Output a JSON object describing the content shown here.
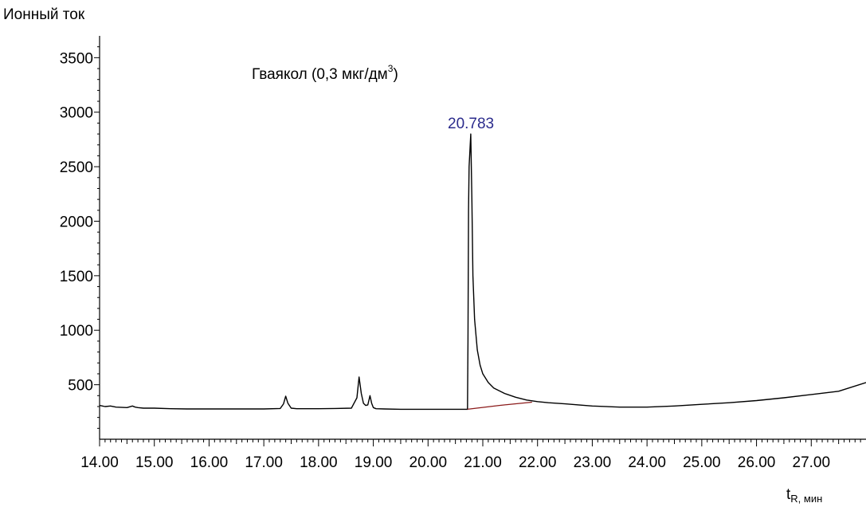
{
  "chart_data": {
    "type": "line",
    "ylabel": "Ионный ток",
    "xlabel_main": "t",
    "xlabel_sub": "R, мин",
    "annotation": {
      "text_main": "Гваякол (0,3 мкг/дм",
      "text_sup": "3",
      "text_close": ")"
    },
    "peak_label": {
      "text": "20.783",
      "x": 20.783,
      "y": 2800
    },
    "xlim": [
      14.0,
      28.0
    ],
    "ylim": [
      0,
      3700
    ],
    "x_ticks": [
      "14.00",
      "15.00",
      "16.00",
      "17.00",
      "18.00",
      "19.00",
      "20.00",
      "21.00",
      "22.00",
      "23.00",
      "24.00",
      "25.00",
      "26.00",
      "27.00"
    ],
    "y_ticks": [
      "500",
      "1000",
      "1500",
      "2000",
      "2500",
      "3000",
      "3500"
    ],
    "series": [
      {
        "color": "#000000",
        "x": [
          14.0,
          14.1,
          14.2,
          14.3,
          14.5,
          14.6,
          14.65,
          14.7,
          14.8,
          15.0,
          15.3,
          15.6,
          16.0,
          16.5,
          17.0,
          17.3,
          17.36,
          17.4,
          17.44,
          17.5,
          17.6,
          18.0,
          18.3,
          18.6,
          18.7,
          18.74,
          18.78,
          18.82,
          18.86,
          18.9,
          18.94,
          18.97,
          19.0,
          19.05,
          19.2,
          19.5,
          20.0,
          20.4,
          20.72,
          20.73,
          20.74,
          20.75,
          20.78,
          20.8,
          20.82,
          20.85,
          20.9,
          20.95,
          21.0,
          21.1,
          21.2,
          21.4,
          21.6,
          21.8,
          22.0,
          22.2,
          22.5,
          23.0,
          23.5,
          24.0,
          24.5,
          25.0,
          25.5,
          26.0,
          26.5,
          27.0,
          27.5,
          28.0
        ],
        "y": [
          310,
          300,
          305,
          295,
          290,
          305,
          295,
          290,
          285,
          285,
          280,
          278,
          278,
          278,
          278,
          282,
          325,
          395,
          330,
          285,
          280,
          280,
          282,
          285,
          380,
          570,
          420,
          330,
          310,
          315,
          400,
          330,
          290,
          280,
          278,
          275,
          275,
          275,
          275,
          900,
          2100,
          2500,
          2800,
          2200,
          1500,
          1100,
          820,
          680,
          600,
          520,
          470,
          420,
          385,
          360,
          345,
          335,
          325,
          305,
          295,
          295,
          305,
          320,
          335,
          355,
          380,
          410,
          440,
          520
        ]
      },
      {
        "color": "#8b1a1a",
        "x": [
          20.72,
          21.3,
          21.9
        ],
        "y": [
          275,
          310,
          340
        ]
      }
    ]
  }
}
